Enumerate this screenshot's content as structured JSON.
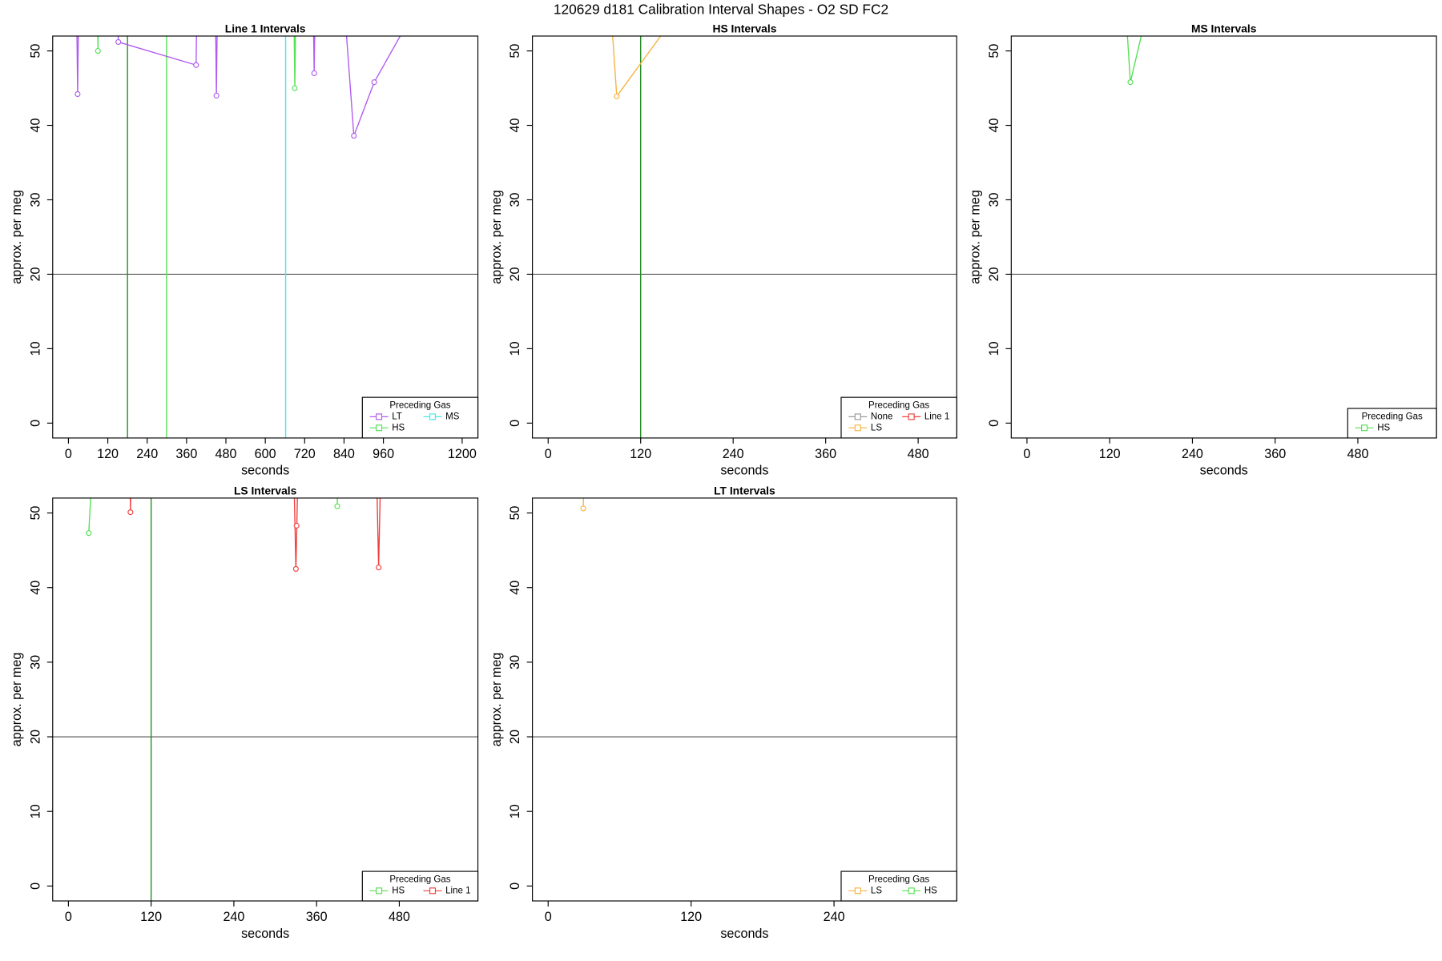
{
  "title": "120629   d181   Calibration Interval Shapes - O2 SD FC2",
  "chart_data": [
    {
      "type": "line",
      "title": "Line 1 Intervals",
      "xlabel": "seconds",
      "ylabel": "approx. per meg",
      "xlim": [
        -48,
        1248
      ],
      "ylim": [
        -2,
        52
      ],
      "xticks": [
        0,
        120,
        240,
        360,
        480,
        600,
        720,
        840,
        960,
        1200
      ],
      "yticks": [
        0,
        10,
        20,
        30,
        40,
        50
      ],
      "hlines": [
        20
      ],
      "vlines": [
        {
          "x": 180,
          "color": "#228b22"
        },
        {
          "x": 299,
          "color": "#55e055"
        },
        {
          "x": 662,
          "color": "#44e8e8"
        }
      ],
      "legend_title": "Preceding Gas",
      "legend": "bottom-right",
      "series": [
        {
          "name": "LT",
          "color": "#b05cf0",
          "x": [
            24,
            28,
            32,
            null,
            150,
            152,
            389,
            393,
            null,
            447,
            451,
            455,
            null,
            745,
            749,
            753,
            null,
            846,
            870,
            932,
            1024
          ],
          "values": [
            60,
            44.2,
            60,
            null,
            60,
            51.2,
            48.1,
            60,
            null,
            60,
            44.0,
            60,
            null,
            60,
            47.0,
            60,
            null,
            53,
            38.6,
            45.8,
            53
          ]
        },
        {
          "name": "HS",
          "color": "#55e055",
          "x": [
            88,
            90,
            92,
            null,
            686,
            690,
            694
          ],
          "values": [
            60,
            50.0,
            60,
            null,
            60,
            45.0,
            60
          ]
        },
        {
          "name": "MS",
          "color": "#44e8e8",
          "x": [],
          "values": []
        }
      ]
    },
    {
      "type": "line",
      "title": "HS Intervals",
      "xlabel": "seconds",
      "ylabel": "approx. per meg",
      "xlim": [
        -20.4,
        530
      ],
      "ylim": [
        -2,
        52
      ],
      "xticks": [
        0,
        120,
        240,
        360,
        480
      ],
      "yticks": [
        0,
        10,
        20,
        30,
        40,
        50
      ],
      "hlines": [
        20
      ],
      "vlines": [
        {
          "x": 120,
          "color": "#228b22"
        }
      ],
      "legend_title": "Preceding Gas",
      "legend": "bottom-right",
      "series": [
        {
          "name": "None",
          "color": "#999999",
          "x": [],
          "values": []
        },
        {
          "name": "LS",
          "color": "#f5b342",
          "x": [
            83,
            89,
            153
          ],
          "values": [
            53,
            43.9,
            53
          ]
        },
        {
          "name": "Line 1",
          "color": "#f04040",
          "x": [],
          "values": []
        }
      ]
    },
    {
      "type": "line",
      "title": "MS Intervals",
      "xlabel": "seconds",
      "ylabel": "approx. per meg",
      "xlim": [
        -22.8,
        594
      ],
      "ylim": [
        -2,
        52
      ],
      "xticks": [
        0,
        120,
        240,
        360,
        480
      ],
      "yticks": [
        0,
        10,
        20,
        30,
        40,
        50
      ],
      "hlines": [
        20
      ],
      "vlines": [],
      "legend_title": "Preceding Gas",
      "legend": "bottom-right",
      "series": [
        {
          "name": "HS",
          "color": "#55e055",
          "x": [
            143,
            150,
            176
          ],
          "values": [
            56,
            45.8,
            56
          ]
        }
      ]
    },
    {
      "type": "line",
      "title": "LS Intervals",
      "xlabel": "seconds",
      "ylabel": "approx. per meg",
      "xlim": [
        -22.8,
        594
      ],
      "ylim": [
        -2,
        52
      ],
      "xticks": [
        0,
        120,
        240,
        360,
        480
      ],
      "yticks": [
        0,
        10,
        20,
        30,
        40,
        50
      ],
      "hlines": [
        20
      ],
      "vlines": [
        {
          "x": 120,
          "color": "#228b22"
        }
      ],
      "legend_title": "Preceding Gas",
      "legend": "bottom-right",
      "series": [
        {
          "name": "HS",
          "color": "#55e055",
          "x": [
            29.5,
            37,
            null,
            390,
            391
          ],
          "values": [
            47.3,
            60,
            null,
            50.9,
            60
          ]
        },
        {
          "name": "Line 1",
          "color": "#f04040",
          "x": [
            89,
            90,
            91,
            null,
            326,
            330,
            334,
            null,
            331,
            null,
            446,
            450,
            454
          ],
          "values": [
            60,
            50.1,
            60,
            null,
            60,
            42.5,
            60,
            null,
            48.3,
            null,
            60,
            42.7,
            60
          ]
        }
      ]
    },
    {
      "type": "line",
      "title": "LT Intervals",
      "xlabel": "seconds",
      "ylabel": "approx. per meg",
      "xlim": [
        -13.2,
        343
      ],
      "ylim": [
        -2,
        52
      ],
      "xticks": [
        0,
        120,
        240
      ],
      "yticks": [
        0,
        10,
        20,
        30,
        40,
        50
      ],
      "hlines": [
        20
      ],
      "vlines": [],
      "legend_title": "Preceding Gas",
      "legend": "bottom-right",
      "series": [
        {
          "name": "LS",
          "color": "#f5b342",
          "x": [
            29.5,
            30.5
          ],
          "values": [
            50.6,
            60
          ]
        },
        {
          "name": "HS",
          "color": "#55e055",
          "x": [],
          "values": []
        }
      ]
    }
  ]
}
